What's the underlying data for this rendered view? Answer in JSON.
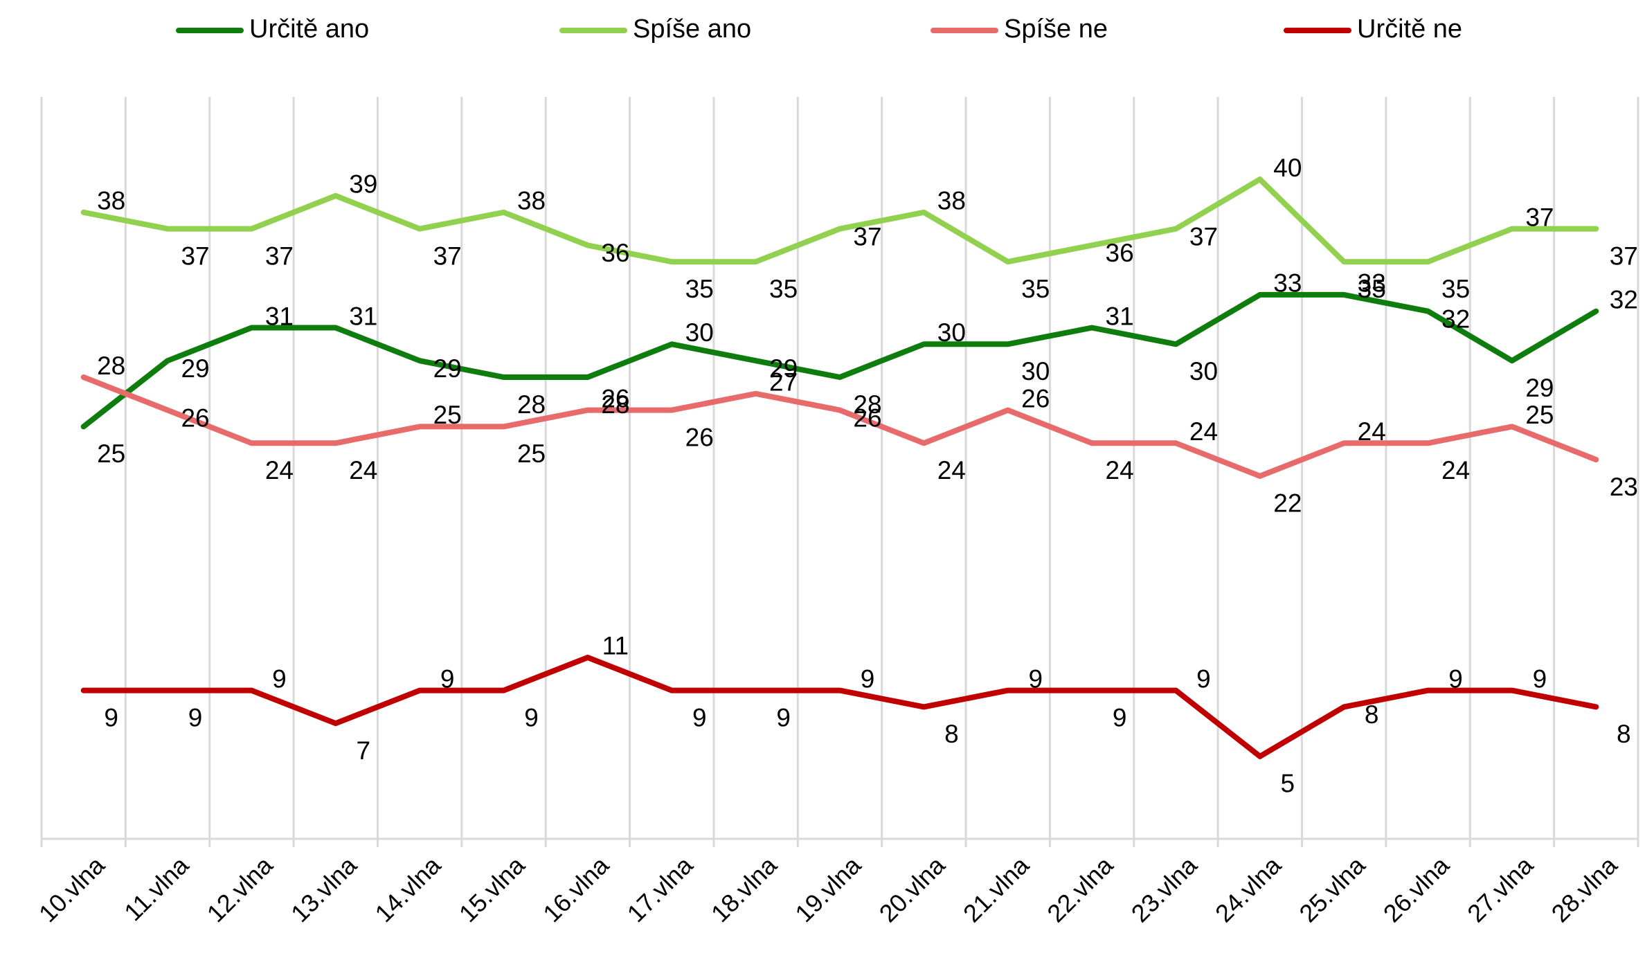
{
  "chart_data": {
    "type": "line",
    "title": "",
    "xlabel": "",
    "ylabel": "",
    "categories": [
      "10.vlna",
      "11.vlna",
      "12.vlna",
      "13.vlna",
      "14.vlna",
      "15.vlna",
      "16.vlna",
      "17.vlna",
      "18.vlna",
      "19.vlna",
      "20.vlna",
      "21.vlna",
      "22.vlna",
      "23.vlna",
      "24.vlna",
      "25.vlna",
      "26.vlna",
      "27.vlna",
      "28.vlna"
    ],
    "ylim": [
      0,
      45
    ],
    "grid": "vertical",
    "legend": "top",
    "series": [
      {
        "name": "Určitě ano",
        "color": "#0e7d0e",
        "values": [
          25,
          29,
          31,
          31,
          29,
          28,
          28,
          30,
          29,
          28,
          30,
          30,
          31,
          30,
          33,
          33,
          32,
          29,
          32
        ]
      },
      {
        "name": "Spíše ano",
        "color": "#92d050",
        "values": [
          38,
          37,
          37,
          39,
          37,
          38,
          36,
          35,
          35,
          37,
          38,
          35,
          36,
          37,
          40,
          35,
          35,
          37,
          37
        ]
      },
      {
        "name": "Spíše ne",
        "color": "#e86b6b",
        "values": [
          28,
          26,
          24,
          24,
          25,
          25,
          26,
          26,
          27,
          26,
          24,
          26,
          24,
          24,
          22,
          24,
          24,
          25,
          23
        ]
      },
      {
        "name": "Určitě ne",
        "color": "#c00000",
        "values": [
          9,
          9,
          9,
          7,
          9,
          9,
          11,
          9,
          9,
          9,
          8,
          9,
          9,
          9,
          5,
          8,
          9,
          9,
          8
        ]
      }
    ]
  }
}
